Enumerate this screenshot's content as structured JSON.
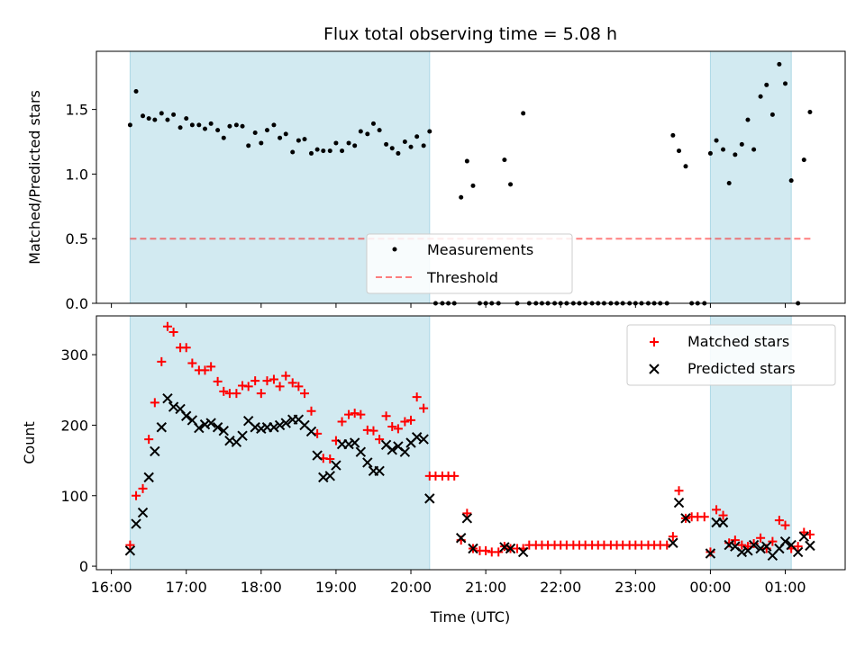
{
  "title": "Flux total observing time = 5.08 h",
  "colors": {
    "shade": "#add8e6",
    "threshold": "#ff0000",
    "measurement": "#000000",
    "matched": "#ff0000",
    "predicted": "#000000"
  },
  "chart_data": [
    {
      "type": "scatter",
      "panel": "top",
      "ylabel": "Matched/Predicted stars",
      "xlim": [
        15.8,
        25.8
      ],
      "ylim": [
        0,
        1.95
      ],
      "yticks": [
        0,
        0.5,
        1.0,
        1.5
      ],
      "ytick_labels": [
        "0.0",
        "0.5",
        "1.0",
        "1.5"
      ],
      "shaded_intervals": [
        [
          16.25,
          20.25
        ],
        [
          24.0,
          25.08
        ]
      ],
      "threshold": {
        "value": 0.5,
        "x_range": [
          16.25,
          25.35
        ],
        "label": "Threshold"
      },
      "legend": {
        "position": "lower-center",
        "entries": [
          "Measurements",
          "Threshold"
        ]
      },
      "series": [
        {
          "name": "Measurements",
          "x": [
            16.25,
            16.33,
            16.42,
            16.5,
            16.58,
            16.67,
            16.75,
            16.83,
            16.92,
            17.0,
            17.08,
            17.17,
            17.25,
            17.33,
            17.42,
            17.5,
            17.58,
            17.67,
            17.75,
            17.83,
            17.92,
            18.0,
            18.08,
            18.17,
            18.25,
            18.33,
            18.42,
            18.5,
            18.58,
            18.67,
            18.75,
            18.83,
            18.92,
            19.0,
            19.08,
            19.17,
            19.25,
            19.33,
            19.42,
            19.5,
            19.58,
            19.67,
            19.75,
            19.83,
            19.92,
            20.0,
            20.08,
            20.17,
            20.25,
            20.33,
            20.42,
            20.5,
            20.58,
            20.67,
            20.75,
            20.83,
            20.92,
            21.0,
            21.08,
            21.17,
            21.25,
            21.33,
            21.42,
            21.5,
            21.58,
            21.67,
            21.75,
            21.83,
            21.92,
            22.0,
            22.08,
            22.17,
            22.25,
            22.33,
            22.42,
            22.5,
            22.58,
            22.67,
            22.75,
            22.83,
            22.92,
            23.0,
            23.08,
            23.17,
            23.25,
            23.33,
            23.42,
            23.5,
            23.58,
            23.67,
            23.75,
            23.83,
            23.92,
            24.0,
            24.08,
            24.17,
            24.25,
            24.33,
            24.42,
            24.5,
            24.58,
            24.67,
            24.75,
            24.83,
            24.92,
            25.0,
            25.08,
            25.17,
            25.25,
            25.33
          ],
          "y": [
            1.38,
            1.64,
            1.45,
            1.43,
            1.42,
            1.47,
            1.42,
            1.46,
            1.36,
            1.43,
            1.38,
            1.38,
            1.35,
            1.39,
            1.34,
            1.28,
            1.37,
            1.38,
            1.37,
            1.22,
            1.32,
            1.24,
            1.34,
            1.38,
            1.28,
            1.31,
            1.17,
            1.26,
            1.27,
            1.16,
            1.19,
            1.18,
            1.18,
            1.24,
            1.18,
            1.24,
            1.22,
            1.33,
            1.31,
            1.39,
            1.34,
            1.23,
            1.2,
            1.16,
            1.25,
            1.21,
            1.29,
            1.22,
            1.33,
            0.0,
            0.0,
            0.0,
            0.0,
            0.82,
            1.1,
            0.91,
            0.0,
            0.0,
            0.0,
            0.0,
            1.11,
            0.92,
            0.0,
            1.47,
            0.0,
            0.0,
            0.0,
            0.0,
            0.0,
            0.0,
            0.0,
            0.0,
            0.0,
            0.0,
            0.0,
            0.0,
            0.0,
            0.0,
            0.0,
            0.0,
            0.0,
            0.0,
            0.0,
            0.0,
            0.0,
            0.0,
            0.0,
            1.3,
            1.18,
            1.06,
            0.0,
            0.0,
            0.0,
            1.16,
            1.26,
            1.19,
            0.93,
            1.15,
            1.23,
            1.42,
            1.19,
            1.6,
            1.69,
            1.46,
            1.85,
            1.7,
            0.95,
            0.0,
            1.11,
            1.48
          ]
        }
      ]
    },
    {
      "type": "scatter",
      "panel": "bottom",
      "xlabel": "Time (UTC)",
      "ylabel": "Count",
      "xlim": [
        15.8,
        25.8
      ],
      "ylim": [
        -5,
        355
      ],
      "xticks": [
        16,
        17,
        18,
        19,
        20,
        21,
        22,
        23,
        24,
        25
      ],
      "xtick_labels": [
        "16:00",
        "17:00",
        "18:00",
        "19:00",
        "20:00",
        "21:00",
        "22:00",
        "23:00",
        "00:00",
        "01:00"
      ],
      "yticks": [
        0,
        100,
        200,
        300
      ],
      "ytick_labels": [
        "0",
        "100",
        "200",
        "300"
      ],
      "shaded_intervals": [
        [
          16.25,
          20.25
        ],
        [
          24.0,
          25.08
        ]
      ],
      "legend": {
        "position": "upper-right",
        "entries": [
          "Matched stars",
          "Predicted stars"
        ]
      },
      "series": [
        {
          "name": "Matched stars",
          "marker": "plus",
          "x": [
            16.25,
            16.33,
            16.42,
            16.5,
            16.58,
            16.67,
            16.75,
            16.83,
            16.92,
            17.0,
            17.08,
            17.17,
            17.25,
            17.33,
            17.42,
            17.5,
            17.58,
            17.67,
            17.75,
            17.83,
            17.92,
            18.0,
            18.08,
            18.17,
            18.25,
            18.33,
            18.42,
            18.5,
            18.58,
            18.67,
            18.75,
            18.83,
            18.92,
            19.0,
            19.08,
            19.17,
            19.25,
            19.33,
            19.42,
            19.5,
            19.58,
            19.67,
            19.75,
            19.83,
            19.92,
            20.0,
            20.08,
            20.17,
            20.25,
            20.33,
            20.42,
            20.5,
            20.58,
            20.67,
            20.75,
            20.83,
            20.92,
            21.0,
            21.08,
            21.17,
            21.25,
            21.33,
            21.42,
            21.5,
            21.58,
            21.67,
            21.75,
            21.83,
            21.92,
            22.0,
            22.08,
            22.17,
            22.25,
            22.33,
            22.42,
            22.5,
            22.58,
            22.67,
            22.75,
            22.83,
            22.92,
            23.0,
            23.08,
            23.17,
            23.25,
            23.33,
            23.42,
            23.5,
            23.58,
            23.67,
            23.75,
            23.83,
            23.92,
            24.0,
            24.08,
            24.17,
            24.25,
            24.33,
            24.42,
            24.5,
            24.58,
            24.67,
            24.75,
            24.83,
            24.92,
            25.0,
            25.08,
            25.17,
            25.25,
            25.33
          ],
          "y": [
            30,
            100,
            110,
            180,
            232,
            290,
            340,
            332,
            310,
            310,
            288,
            278,
            278,
            283,
            262,
            248,
            245,
            245,
            256,
            255,
            263,
            245,
            263,
            265,
            255,
            270,
            260,
            255,
            245,
            220,
            188,
            153,
            152,
            178,
            205,
            215,
            217,
            215,
            193,
            192,
            180,
            213,
            198,
            195,
            205,
            207,
            240,
            224,
            128,
            128,
            128,
            128,
            128,
            37,
            75,
            25,
            22,
            22,
            20,
            20,
            28,
            25,
            25,
            25,
            30,
            30,
            30,
            30,
            30,
            30,
            30,
            30,
            30,
            30,
            30,
            30,
            30,
            30,
            30,
            30,
            30,
            30,
            30,
            30,
            30,
            30,
            30,
            42,
            107,
            68,
            70,
            70,
            70,
            20,
            80,
            72,
            33,
            37,
            30,
            28,
            32,
            40,
            25,
            35,
            65,
            58,
            25,
            28,
            48,
            45
          ]
        },
        {
          "name": "Predicted stars",
          "marker": "x",
          "x": [
            16.25,
            16.33,
            16.42,
            16.5,
            16.58,
            16.67,
            16.75,
            16.83,
            16.92,
            17.0,
            17.08,
            17.17,
            17.25,
            17.33,
            17.42,
            17.5,
            17.58,
            17.67,
            17.75,
            17.83,
            17.92,
            18.0,
            18.08,
            18.17,
            18.25,
            18.33,
            18.42,
            18.5,
            18.58,
            18.67,
            18.75,
            18.83,
            18.92,
            19.0,
            19.08,
            19.17,
            19.25,
            19.33,
            19.42,
            19.5,
            19.58,
            19.67,
            19.75,
            19.83,
            19.92,
            20.0,
            20.08,
            20.17,
            20.25,
            20.67,
            20.75,
            20.83,
            21.25,
            21.33,
            21.5,
            23.5,
            23.58,
            23.67,
            24.0,
            24.08,
            24.17,
            24.25,
            24.33,
            24.42,
            24.5,
            24.58,
            24.67,
            24.75,
            24.83,
            24.92,
            25.0,
            25.08,
            25.17,
            25.25,
            25.33
          ],
          "y": [
            22,
            60,
            76,
            126,
            163,
            197,
            238,
            226,
            223,
            213,
            207,
            196,
            201,
            203,
            197,
            192,
            178,
            176,
            185,
            206,
            197,
            195,
            197,
            197,
            200,
            203,
            208,
            208,
            200,
            191,
            157,
            126,
            128,
            143,
            173,
            173,
            175,
            162,
            147,
            135,
            135,
            172,
            165,
            170,
            162,
            175,
            183,
            180,
            96,
            40,
            68,
            25,
            27,
            25,
            20,
            33,
            90,
            68,
            18,
            62,
            62,
            30,
            28,
            20,
            22,
            30,
            25,
            28,
            15,
            25,
            35,
            30,
            20,
            42,
            29
          ]
        }
      ]
    }
  ]
}
